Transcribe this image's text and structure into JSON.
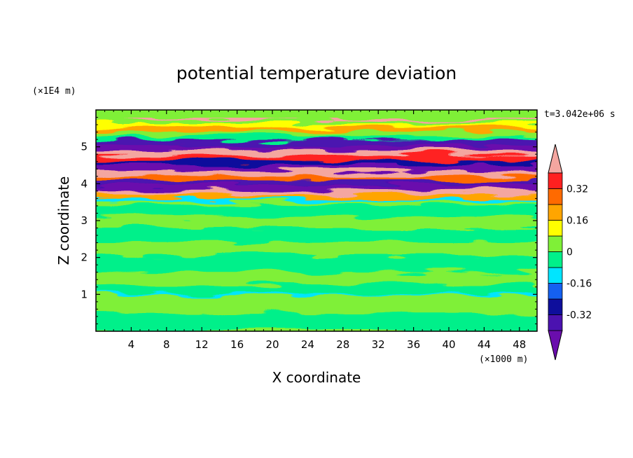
{
  "chart_data": {
    "type": "heatmap",
    "title": "potential temperature deviation",
    "xlabel": "X coordinate",
    "ylabel": "Z coordinate",
    "x_unit": "(×1000 m)",
    "y_unit": "(×1E4 m)",
    "time_label": "t=3.042e+06 s",
    "xlim": [
      0,
      50
    ],
    "ylim": [
      0,
      6
    ],
    "x_ticks": [
      4,
      8,
      12,
      16,
      20,
      24,
      28,
      32,
      36,
      40,
      44,
      48
    ],
    "x_tick_labels": [
      "4",
      "8",
      "12",
      "16",
      "20",
      "24",
      "28",
      "32",
      "36",
      "40",
      "44",
      "48"
    ],
    "y_ticks": [
      1,
      2,
      3,
      4,
      5
    ],
    "y_tick_labels": [
      "1",
      "2",
      "3",
      "4",
      "5"
    ],
    "colorbar": {
      "levels": [
        -0.48,
        -0.4,
        -0.32,
        -0.24,
        -0.16,
        -0.08,
        0,
        0.08,
        0.16,
        0.24,
        0.32,
        0.4,
        0.48
      ],
      "colors": [
        "#6a0dad",
        "#4b12b0",
        "#0e0e9c",
        "#1560f0",
        "#00e5ff",
        "#00f08a",
        "#7ff037",
        "#ffff00",
        "#ffa500",
        "#ff6a00",
        "#ff2020",
        "#f4a6a0"
      ],
      "labels": [
        "-0.32",
        "-0.16",
        "0",
        "0.16",
        "0.32"
      ],
      "label_values": [
        -0.32,
        -0.16,
        0,
        0.16,
        0.32
      ]
    },
    "background_color": "#7ff037",
    "bands": [
      {
        "z0": 5.72,
        "z1": 5.78,
        "value": 0.4
      },
      {
        "z0": 5.62,
        "z1": 5.72,
        "value": 0.05
      },
      {
        "z0": 5.52,
        "z1": 5.62,
        "value": 0.12
      },
      {
        "z0": 5.4,
        "z1": 5.52,
        "value": 0.2
      },
      {
        "z0": 5.28,
        "z1": 5.4,
        "value": 0.03
      },
      {
        "z0": 5.18,
        "z1": 5.28,
        "value": -0.08
      },
      {
        "z0": 5.02,
        "z1": 5.18,
        "value": -0.35
      },
      {
        "z0": 4.9,
        "z1": 5.02,
        "value": -0.44
      },
      {
        "z0": 4.76,
        "z1": 4.9,
        "value": 0.45
      },
      {
        "z0": 4.62,
        "z1": 4.76,
        "value": 0.36
      },
      {
        "z0": 4.5,
        "z1": 4.62,
        "value": -0.3
      },
      {
        "z0": 4.34,
        "z1": 4.5,
        "value": -0.45
      },
      {
        "z0": 4.2,
        "z1": 4.34,
        "value": 0.45
      },
      {
        "z0": 4.08,
        "z1": 4.2,
        "value": 0.28
      },
      {
        "z0": 3.96,
        "z1": 4.08,
        "value": -0.36
      },
      {
        "z0": 3.82,
        "z1": 3.96,
        "value": -0.46
      },
      {
        "z0": 3.7,
        "z1": 3.82,
        "value": 0.45
      },
      {
        "z0": 3.58,
        "z1": 3.7,
        "value": 0.18
      },
      {
        "z0": 3.5,
        "z1": 3.58,
        "value": -0.12
      },
      {
        "z0": 3.4,
        "z1": 3.5,
        "value": 0.06
      },
      {
        "z0": 3.1,
        "z1": 3.4,
        "value": -0.04
      },
      {
        "z0": 2.8,
        "z1": 3.1,
        "value": 0.03
      },
      {
        "z0": 2.4,
        "z1": 2.8,
        "value": -0.03
      },
      {
        "z0": 2.05,
        "z1": 2.4,
        "value": 0.02
      },
      {
        "z0": 1.6,
        "z1": 2.05,
        "value": -0.03
      },
      {
        "z0": 1.25,
        "z1": 1.6,
        "value": 0.02
      },
      {
        "z0": 1.02,
        "z1": 1.25,
        "value": -0.03
      },
      {
        "z0": 0.97,
        "z1": 1.02,
        "value": -0.14
      },
      {
        "z0": 0.5,
        "z1": 0.97,
        "value": 0.03
      },
      {
        "z0": 0.0,
        "z1": 0.5,
        "value": -0.02
      }
    ]
  }
}
